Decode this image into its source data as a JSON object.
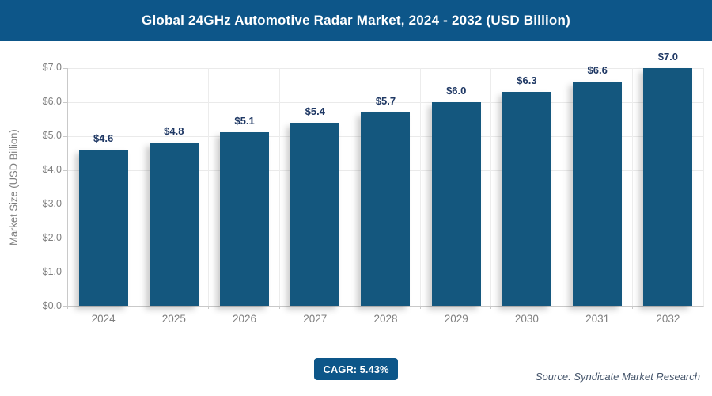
{
  "header": {
    "title": "Global 24GHz Automotive Radar Market, 2024 - 2032 (USD Billion)"
  },
  "chart_data": {
    "type": "bar",
    "title": "Global 24GHz Automotive Radar Market, 2024 - 2032 (USD Billion)",
    "categories": [
      "2024",
      "2025",
      "2026",
      "2027",
      "2028",
      "2029",
      "2030",
      "2031",
      "2032"
    ],
    "values": [
      4.6,
      4.8,
      5.1,
      5.4,
      5.7,
      6.0,
      6.3,
      6.6,
      7.0
    ],
    "value_labels": [
      "$4.6",
      "$4.8",
      "$5.1",
      "$5.4",
      "$5.7",
      "$6.0",
      "$6.3",
      "$6.6",
      "$7.0"
    ],
    "xlabel": "",
    "ylabel": "Market Size (USD Billion)",
    "ylim": [
      0,
      7
    ],
    "ytick_step": 1,
    "ytick_labels": [
      "$0.0",
      "$1.0",
      "$2.0",
      "$3.0",
      "$4.0",
      "$5.0",
      "$6.0",
      "$7.0"
    ],
    "grid": true,
    "legend": false
  },
  "footer": {
    "cagr_label": "CAGR: 5.43%",
    "source": "Source: Syndicate Market Research"
  },
  "colors": {
    "brand_blue": "#0d5689",
    "bar_blue": "#14577e",
    "value_label_navy": "#1f3864",
    "axis_text_gray": "#7f7f7f",
    "gridline_gray": "#eaeaea",
    "axis_line_gray": "#c9c9c9",
    "source_gray_blue": "#44546a"
  }
}
